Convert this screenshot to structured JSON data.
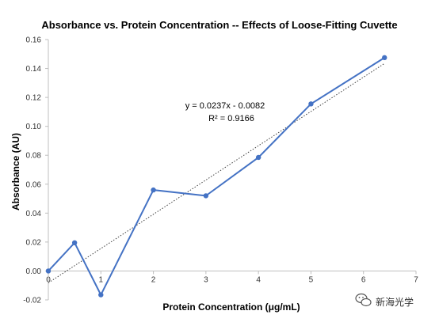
{
  "chart_data": {
    "type": "line",
    "title": "Absorbance vs. Protein Concentration -- Effects of Loose-Fitting Cuvette",
    "xlabel": "Protein Concentration (μg/mL)",
    "ylabel": "Absorbance (AU)",
    "xlim": [
      0,
      7
    ],
    "ylim": [
      -0.02,
      0.16
    ],
    "xticks": [
      "0",
      "1",
      "2",
      "3",
      "4",
      "5",
      "6",
      "7"
    ],
    "yticks": [
      "-0.02",
      "0.00",
      "0.02",
      "0.04",
      "0.06",
      "0.08",
      "0.10",
      "0.12",
      "0.14",
      "0.16"
    ],
    "grid": false,
    "legend": "none",
    "series": [
      {
        "x": [
          0,
          0.5,
          1,
          2,
          3,
          4,
          5,
          6.4
        ],
        "y": [
          0,
          0.0195,
          -0.0165,
          0.056,
          0.052,
          0.0785,
          0.1155,
          0.1475
        ],
        "color": "#4472C4",
        "marker": "circle"
      }
    ],
    "trendline": {
      "style": "dotted",
      "color": "#404040",
      "slope": 0.0237,
      "intercept": -0.0082,
      "x_range": [
        0,
        6.4
      ]
    },
    "annotations": {
      "equation": "y = 0.0237x - 0.0082",
      "r_squared": "R² = 0.9166"
    }
  },
  "watermark": {
    "text": "新海光学",
    "icon": "wechat-icon"
  }
}
